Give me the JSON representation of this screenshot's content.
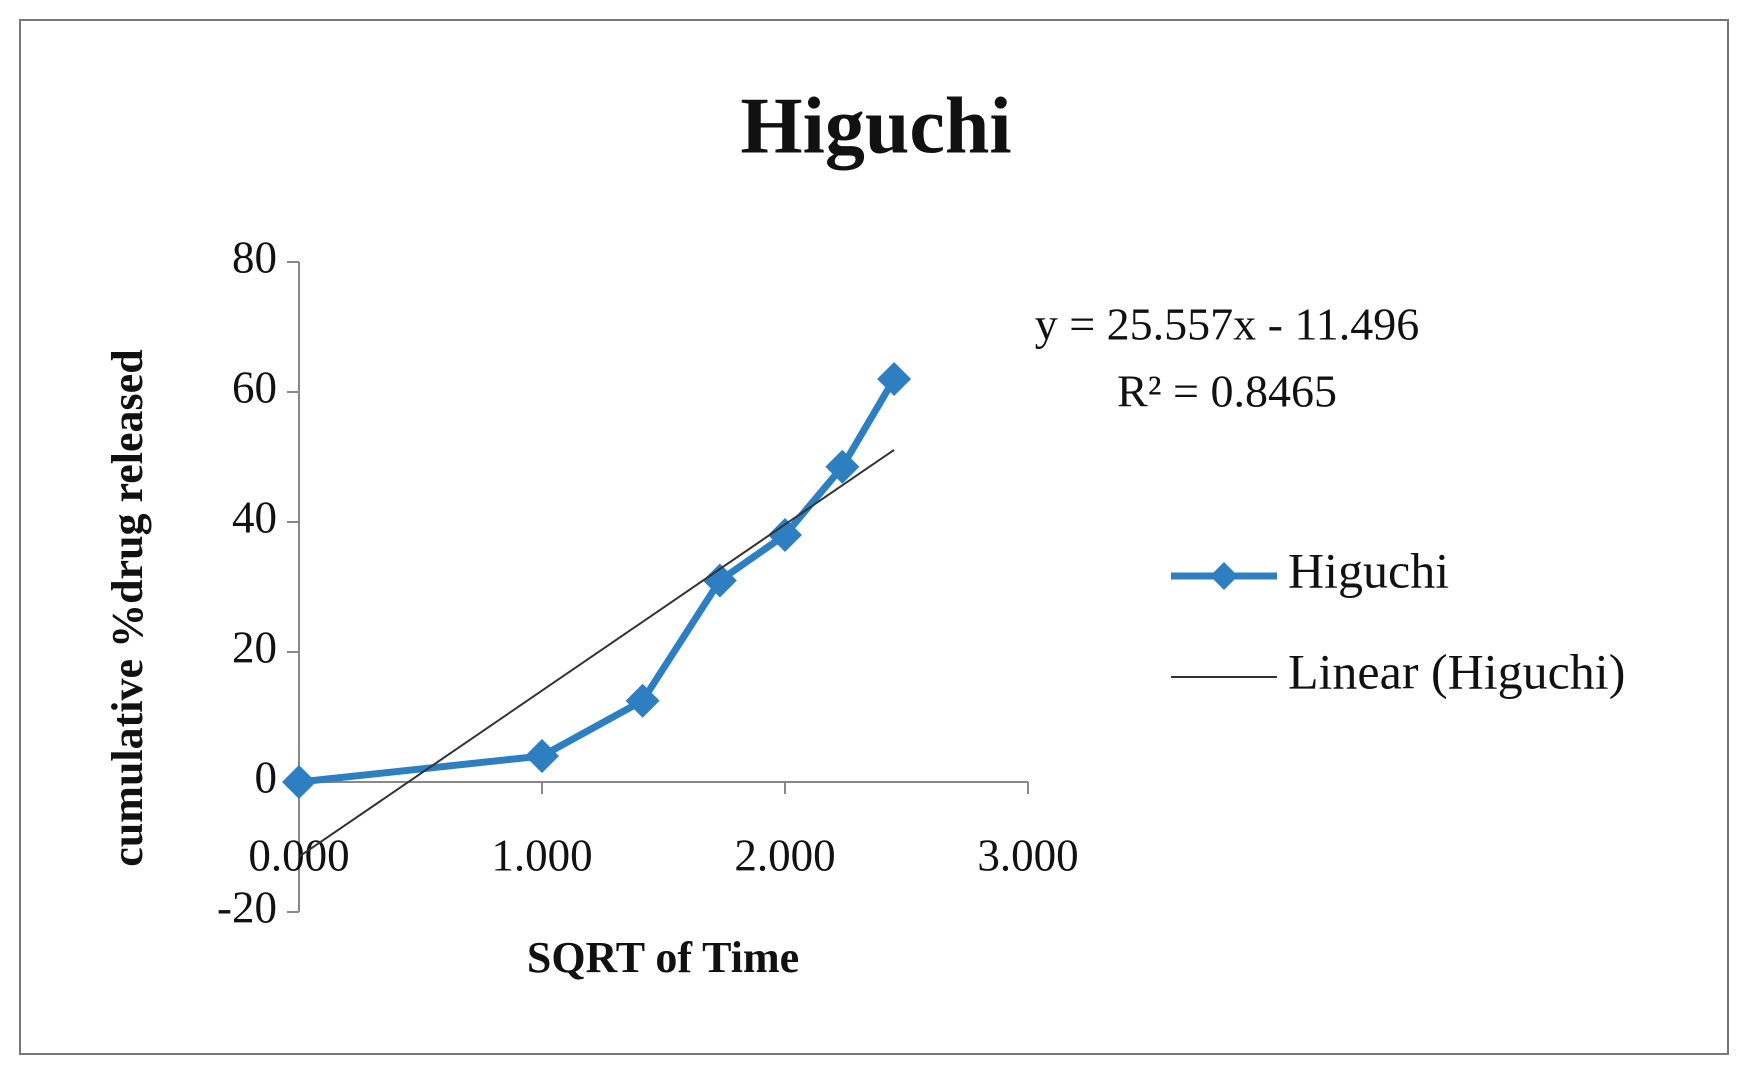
{
  "chart_data": {
    "type": "line",
    "title": "Higuchi",
    "xlabel": "SQRT of Time",
    "ylabel": "cumulative %drug released",
    "x": [
      0,
      1,
      1.414,
      1.732,
      2,
      2.236,
      2.449
    ],
    "series": [
      {
        "name": "Higuchi",
        "color": "#2e7fc1",
        "values": [
          0,
          4,
          12.5,
          31,
          38,
          48.5,
          62
        ],
        "marker": "diamond"
      },
      {
        "name": "Linear (Higuchi)",
        "color": "#333333",
        "x": [
          0,
          2.449
        ],
        "values": [
          -11.496,
          51.093
        ],
        "marker": "none"
      }
    ],
    "annotations": [
      "y = 25.557x - 11.496",
      "R² = 0.8465"
    ],
    "xlim": [
      0,
      3
    ],
    "xticks": [
      {
        "value": 0,
        "label": "0.000"
      },
      {
        "value": 1,
        "label": "1.000"
      },
      {
        "value": 2,
        "label": "2.000"
      },
      {
        "value": 3,
        "label": "3.000"
      }
    ],
    "ylim": [
      -20,
      80
    ],
    "yticks": [
      -20,
      0,
      20,
      40,
      60,
      80
    ],
    "grid": false,
    "legend": "right"
  }
}
